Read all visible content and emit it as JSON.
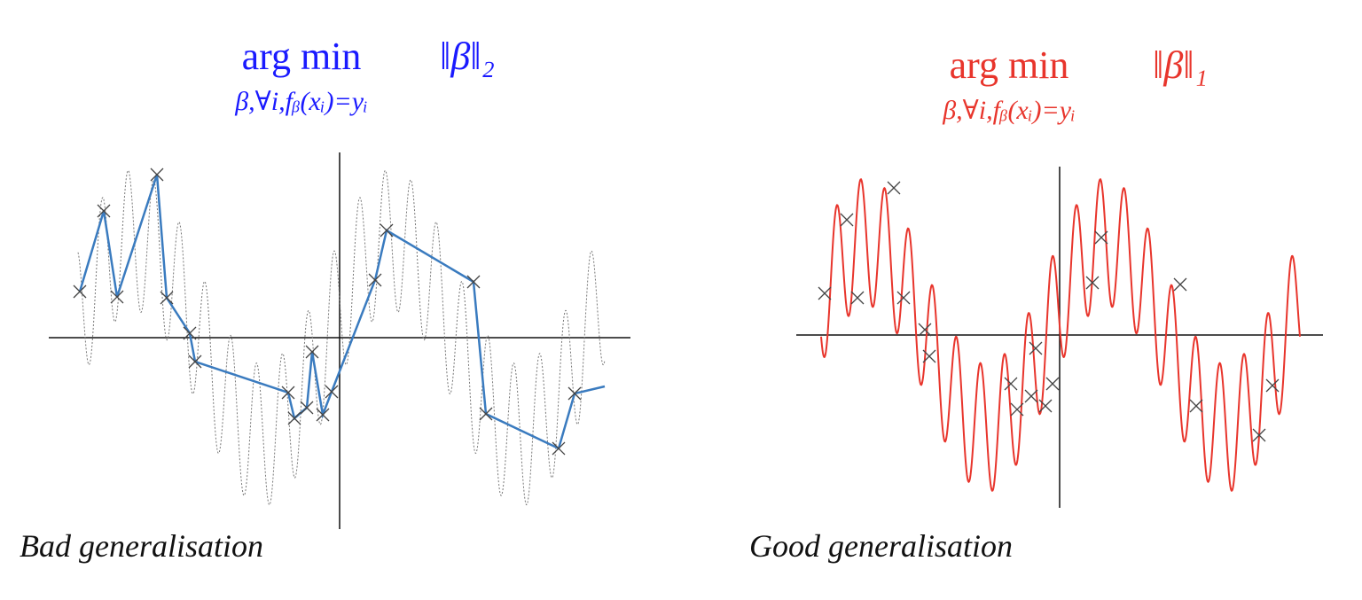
{
  "panels": [
    {
      "operator": "arg min",
      "subscript": "β,∀i,fᵦ(xᵢ)=yᵢ",
      "norm": "‖β‖₂",
      "caption": "Bad generalisation"
    },
    {
      "operator": "arg min",
      "subscript": "β,∀i,fᵦ(xᵢ)=yᵢ",
      "norm": "‖β‖₁",
      "caption": "Good generalisation"
    }
  ]
}
